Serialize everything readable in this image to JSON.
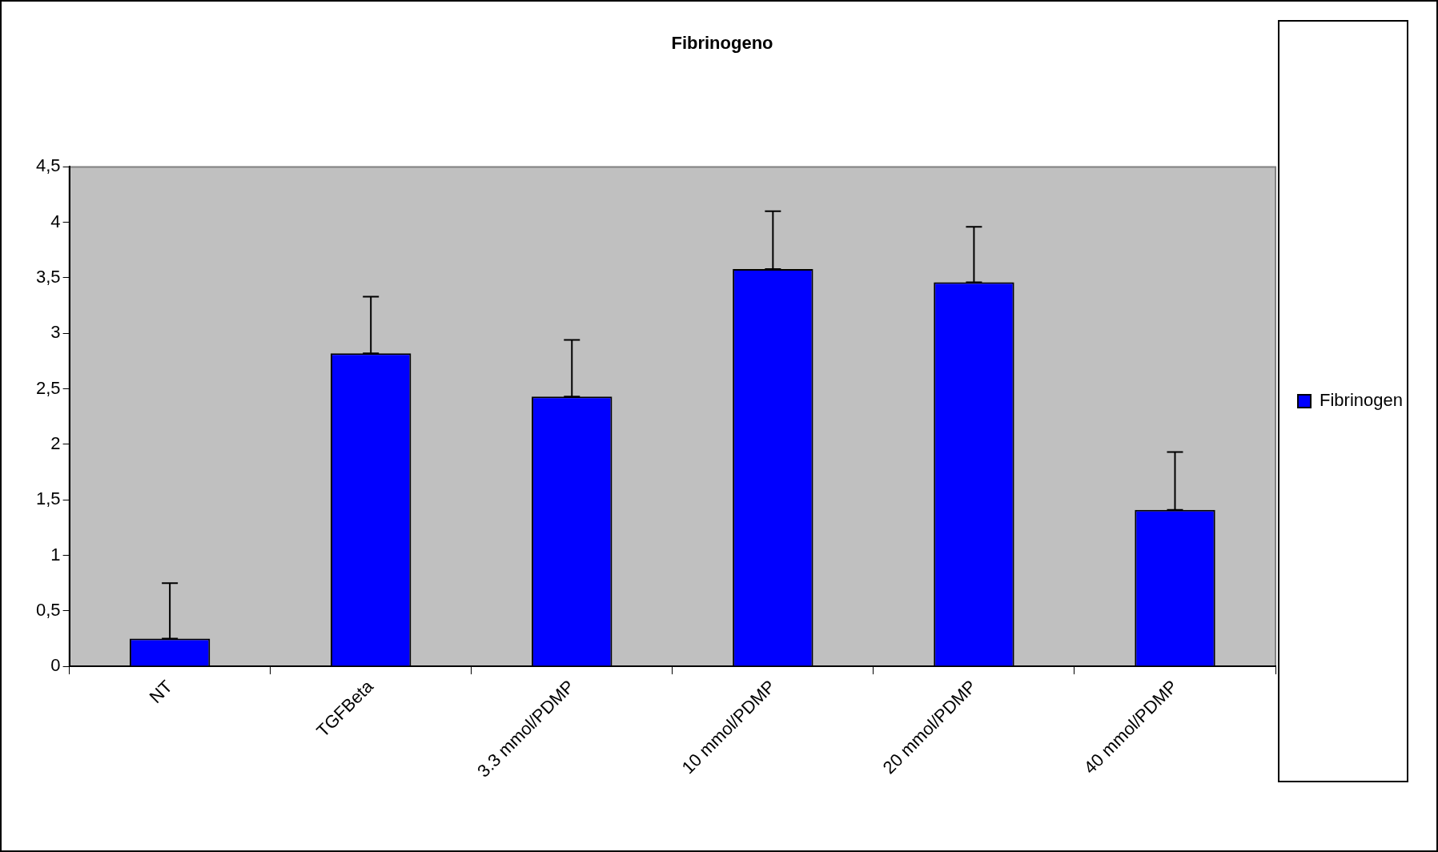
{
  "chart_data": {
    "type": "bar",
    "title": "Fibrinogeno",
    "categories": [
      "NT",
      "TGFBeta",
      "3.3 mmol/PDMP",
      "10 mmol/PDMP",
      "20 mmol/PDMP",
      "40 mmol/PDMP"
    ],
    "series": [
      {
        "name": "Fibrinogen",
        "color": "#0000ff",
        "values": [
          0.25,
          2.82,
          2.43,
          3.58,
          3.46,
          1.41
        ],
        "errors": [
          [
            0.25,
            0.75
          ],
          [
            2.82,
            3.33
          ],
          [
            2.43,
            2.94
          ],
          [
            3.58,
            4.1
          ],
          [
            3.46,
            3.96
          ],
          [
            1.41,
            1.93
          ]
        ]
      }
    ],
    "ylim": [
      0,
      4.5
    ],
    "yticks": [
      {
        "value": 0,
        "label": "0"
      },
      {
        "value": 0.5,
        "label": "0,5"
      },
      {
        "value": 1,
        "label": "1"
      },
      {
        "value": 1.5,
        "label": "1,5"
      },
      {
        "value": 2,
        "label": "2"
      },
      {
        "value": 2.5,
        "label": "2,5"
      },
      {
        "value": 3,
        "label": "3"
      },
      {
        "value": 3.5,
        "label": "3,5"
      },
      {
        "value": 4,
        "label": "4"
      },
      {
        "value": 4.5,
        "label": "4,5"
      }
    ],
    "grid": false,
    "legend": "right"
  }
}
